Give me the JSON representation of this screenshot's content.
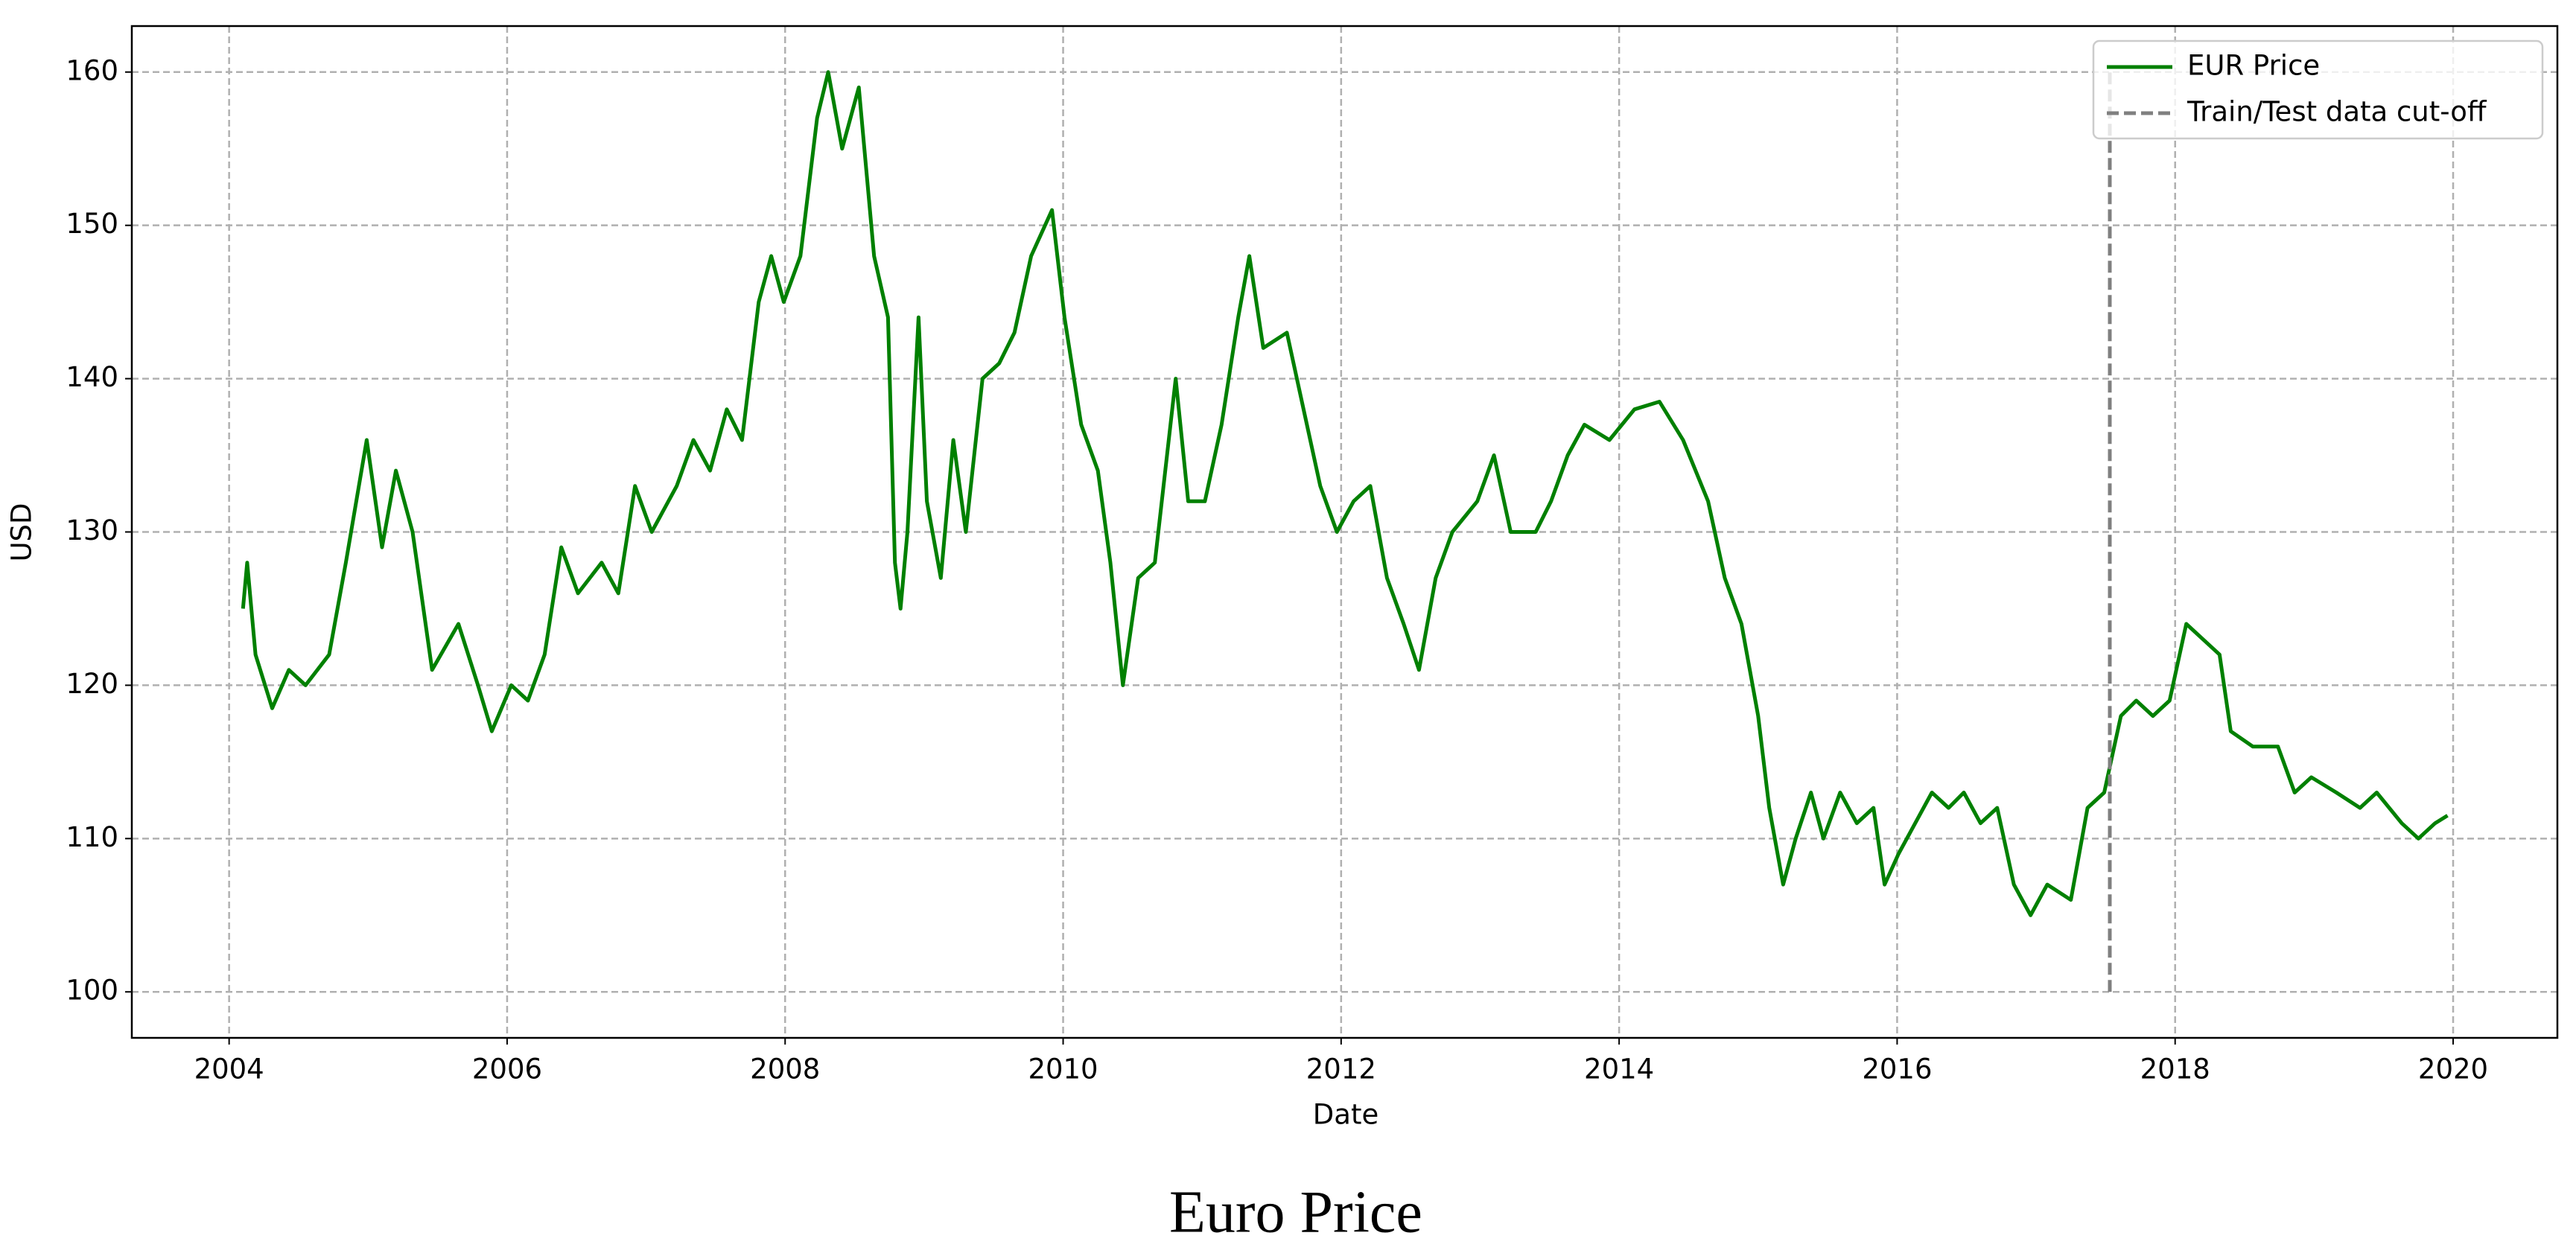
{
  "chart_data": {
    "type": "line",
    "title": "Euro Price",
    "x_label": "Date",
    "y_label": "USD",
    "xlim": [
      2003.3,
      2020.75
    ],
    "ylim": [
      97,
      163
    ],
    "xticks": [
      2004,
      2006,
      2008,
      2010,
      2012,
      2014,
      2016,
      2018,
      2020
    ],
    "yticks": [
      100,
      110,
      120,
      130,
      140,
      150,
      160
    ],
    "grid": true,
    "legend": "upper right",
    "series": [
      {
        "name": "EUR Price",
        "color": "#008000",
        "style": "solid",
        "x": [
          2004.1,
          2004.13,
          2004.19,
          2004.31,
          2004.43,
          2004.55,
          2004.72,
          2004.84,
          2004.99,
          2005.1,
          2005.2,
          2005.32,
          2005.46,
          2005.65,
          2005.79,
          2005.89,
          2006.03,
          2006.15,
          2006.27,
          2006.39,
          2006.51,
          2006.68,
          2006.8,
          2006.92,
          2007.04,
          2007.22,
          2007.34,
          2007.46,
          2007.58,
          2007.69,
          2007.81,
          2007.9,
          2007.99,
          2008.11,
          2008.23,
          2008.31,
          2008.41,
          2008.53,
          2008.64,
          2008.74,
          2008.79,
          2008.83,
          2008.88,
          2008.96,
          2009.02,
          2009.12,
          2009.21,
          2009.3,
          2009.42,
          2009.54,
          2009.65,
          2009.77,
          2009.92,
          2010.01,
          2010.13,
          2010.25,
          2010.34,
          2010.43,
          2010.54,
          2010.66,
          2010.81,
          2010.9,
          2011.02,
          2011.14,
          2011.26,
          2011.34,
          2011.44,
          2011.61,
          2011.73,
          2011.85,
          2011.97,
          2012.09,
          2012.21,
          2012.33,
          2012.45,
          2012.56,
          2012.68,
          2012.8,
          2012.98,
          2013.1,
          2013.22,
          2013.4,
          2013.51,
          2013.63,
          2013.75,
          2013.93,
          2014.11,
          2014.29,
          2014.46,
          2014.64,
          2014.76,
          2014.88,
          2015.0,
          2015.08,
          2015.18,
          2015.27,
          2015.38,
          2015.47,
          2015.59,
          2015.71,
          2015.83,
          2015.91,
          2016.01,
          2016.13,
          2016.25,
          2016.37,
          2016.48,
          2016.6,
          2016.72,
          2016.84,
          2016.96,
          2017.08,
          2017.25,
          2017.37,
          2017.49,
          2017.61,
          2017.72,
          2017.84,
          2017.96,
          2018.08,
          2018.2,
          2018.32,
          2018.4,
          2018.56,
          2018.74,
          2018.86,
          2018.98,
          2019.16,
          2019.33,
          2019.45,
          2019.63,
          2019.75,
          2019.87,
          2019.96
        ],
        "values": [
          125,
          128,
          122,
          118.5,
          121,
          120,
          122,
          128,
          136,
          129,
          134,
          130,
          121,
          124,
          120,
          117,
          120,
          119,
          122,
          129,
          126,
          128,
          126,
          133,
          130,
          133,
          136,
          134,
          138,
          136,
          145,
          148,
          145,
          148,
          157,
          160,
          155,
          159,
          148,
          144,
          128,
          125,
          130,
          144,
          132,
          127,
          136,
          130,
          140,
          141,
          143,
          148,
          151,
          144,
          137,
          134,
          128,
          120,
          127,
          128,
          140,
          132,
          132,
          137,
          144,
          148,
          142,
          143,
          138,
          133,
          130,
          132,
          133,
          127,
          124,
          121,
          127,
          130,
          132,
          135,
          130,
          130,
          132,
          135,
          137,
          136,
          138,
          138.5,
          136,
          132,
          127,
          124,
          118,
          112,
          107,
          110,
          113,
          110,
          113,
          111,
          112,
          107,
          109,
          111,
          113,
          112,
          113,
          111,
          112,
          107,
          105,
          107,
          106,
          112,
          113,
          118,
          119,
          118,
          119,
          124,
          123,
          122,
          117,
          116,
          116,
          113,
          114,
          113,
          112,
          113,
          111,
          110,
          111,
          111.5
        ]
      },
      {
        "name": "Train/Test data cut-off",
        "color": "#808080",
        "style": "dashed",
        "x": [
          2017.53,
          2017.53
        ],
        "values": [
          100,
          160
        ]
      }
    ]
  }
}
